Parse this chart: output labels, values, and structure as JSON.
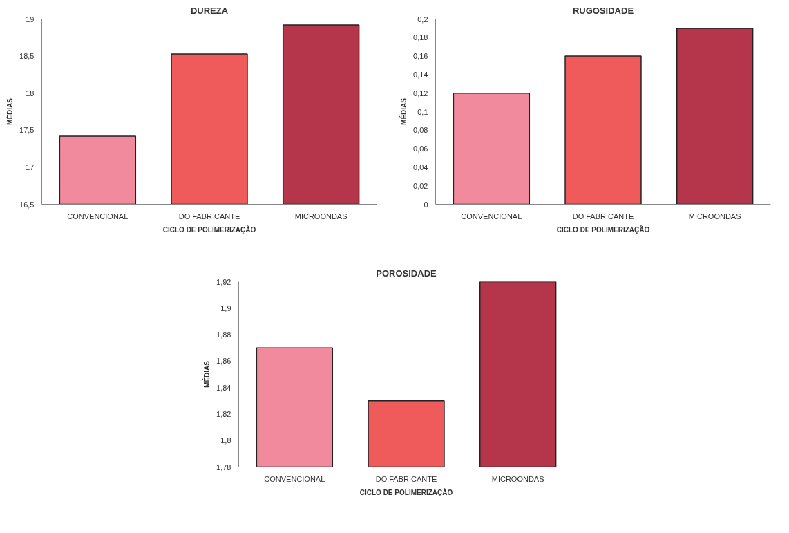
{
  "chart_data": [
    {
      "type": "bar",
      "title": "DUREZA",
      "xlabel": "CICLO DE POLIMERIZAÇÃO",
      "ylabel": "MÉDIAS",
      "categories": [
        "CONVENCIONAL",
        "DO FABRICANTE",
        "MICROONDAS"
      ],
      "values": [
        17.42,
        18.53,
        18.92
      ],
      "colors": [
        "#f28a9e",
        "#ef5a5a",
        "#b5354a"
      ],
      "ylim": [
        16.5,
        19
      ],
      "yticks": [
        {
          "value": 16.5,
          "label": "16,5"
        },
        17,
        {
          "value": 17.5,
          "label": "17,5"
        },
        18,
        {
          "value": 18.5,
          "label": "18,5"
        },
        19
      ],
      "grid": false
    },
    {
      "type": "bar",
      "title": "RUGOSIDADE",
      "xlabel": "CICLO DE POLIMERIZAÇÃO",
      "ylabel": "MÉDIAS",
      "categories": [
        "CONVENCIONAL",
        "DO FABRICANTE",
        "MICROONDAS"
      ],
      "values": [
        0.12,
        0.16,
        0.19
      ],
      "colors": [
        "#f28a9e",
        "#ef5a5a",
        "#b5354a"
      ],
      "ylim": [
        0,
        0.2
      ],
      "yticks": [
        0,
        {
          "value": 0.02,
          "label": "0,02"
        },
        {
          "value": 0.04,
          "label": "0,04"
        },
        {
          "value": 0.06,
          "label": "0,06"
        },
        {
          "value": 0.08,
          "label": "0,08"
        },
        {
          "value": 0.1,
          "label": "0,1"
        },
        {
          "value": 0.12,
          "label": "0,12"
        },
        {
          "value": 0.14,
          "label": "0,14"
        },
        {
          "value": 0.16,
          "label": "0,16"
        },
        {
          "value": 0.18,
          "label": "0,18"
        },
        {
          "value": 0.2,
          "label": "0,2"
        }
      ],
      "grid": false
    },
    {
      "type": "bar",
      "title": "POROSIDADE",
      "xlabel": "CICLO DE POLIMERIZAÇÃO",
      "ylabel": "MÉDIAS",
      "categories": [
        "CONVENCIONAL",
        "DO FABRICANTE",
        "MICROONDAS"
      ],
      "values": [
        1.87,
        1.83,
        1.92
      ],
      "colors": [
        "#f28a9e",
        "#ef5a5a",
        "#b5354a"
      ],
      "ylim": [
        1.78,
        1.92
      ],
      "yticks": [
        {
          "value": 1.78,
          "label": "1,78"
        },
        {
          "value": 1.8,
          "label": "1,8"
        },
        {
          "value": 1.82,
          "label": "1,82"
        },
        {
          "value": 1.84,
          "label": "1,84"
        },
        {
          "value": 1.86,
          "label": "1,86"
        },
        {
          "value": 1.88,
          "label": "1,88"
        },
        {
          "value": 1.9,
          "label": "1,9"
        },
        {
          "value": 1.92,
          "label": "1,92"
        }
      ],
      "grid": false
    }
  ]
}
